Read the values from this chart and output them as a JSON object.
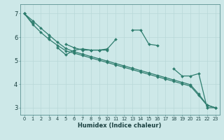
{
  "xlabel": "Humidex (Indice chaleur)",
  "background_color": "#cde8e8",
  "grid_color": "#b8d8d8",
  "line_color": "#2e7d6e",
  "xlim": [
    -0.5,
    23.5
  ],
  "ylim": [
    2.7,
    7.4
  ],
  "yticks": [
    3,
    4,
    5,
    6,
    7
  ],
  "xticks": [
    0,
    1,
    2,
    3,
    4,
    5,
    6,
    7,
    8,
    9,
    10,
    11,
    12,
    13,
    14,
    15,
    16,
    17,
    18,
    19,
    20,
    21,
    22,
    23
  ],
  "series": [
    [
      7.0,
      6.6,
      null,
      6.0,
      null,
      5.7,
      5.55,
      5.45,
      5.45,
      5.45,
      5.5,
      5.9,
      null,
      6.3,
      6.3,
      5.7,
      5.65,
      null,
      4.65,
      4.35,
      4.35,
      4.45,
      3.0,
      3.0
    ],
    [
      7.0,
      null,
      null,
      null,
      5.55,
      5.25,
      5.45,
      5.5,
      5.45,
      5.45,
      5.45,
      null,
      null,
      null,
      null,
      null,
      null,
      null,
      null,
      null,
      null,
      null,
      null,
      null
    ],
    [
      7.0,
      6.55,
      6.2,
      5.9,
      5.65,
      5.42,
      5.32,
      5.22,
      5.12,
      5.02,
      4.92,
      4.82,
      4.72,
      4.62,
      4.52,
      4.42,
      4.32,
      4.22,
      4.12,
      4.02,
      3.92,
      3.52,
      3.1,
      3.0
    ],
    [
      7.0,
      6.7,
      6.38,
      6.08,
      5.78,
      5.52,
      5.38,
      5.28,
      5.18,
      5.08,
      4.98,
      4.88,
      4.78,
      4.68,
      4.58,
      4.48,
      4.38,
      4.28,
      4.18,
      4.08,
      3.98,
      3.58,
      3.12,
      3.0
    ]
  ]
}
